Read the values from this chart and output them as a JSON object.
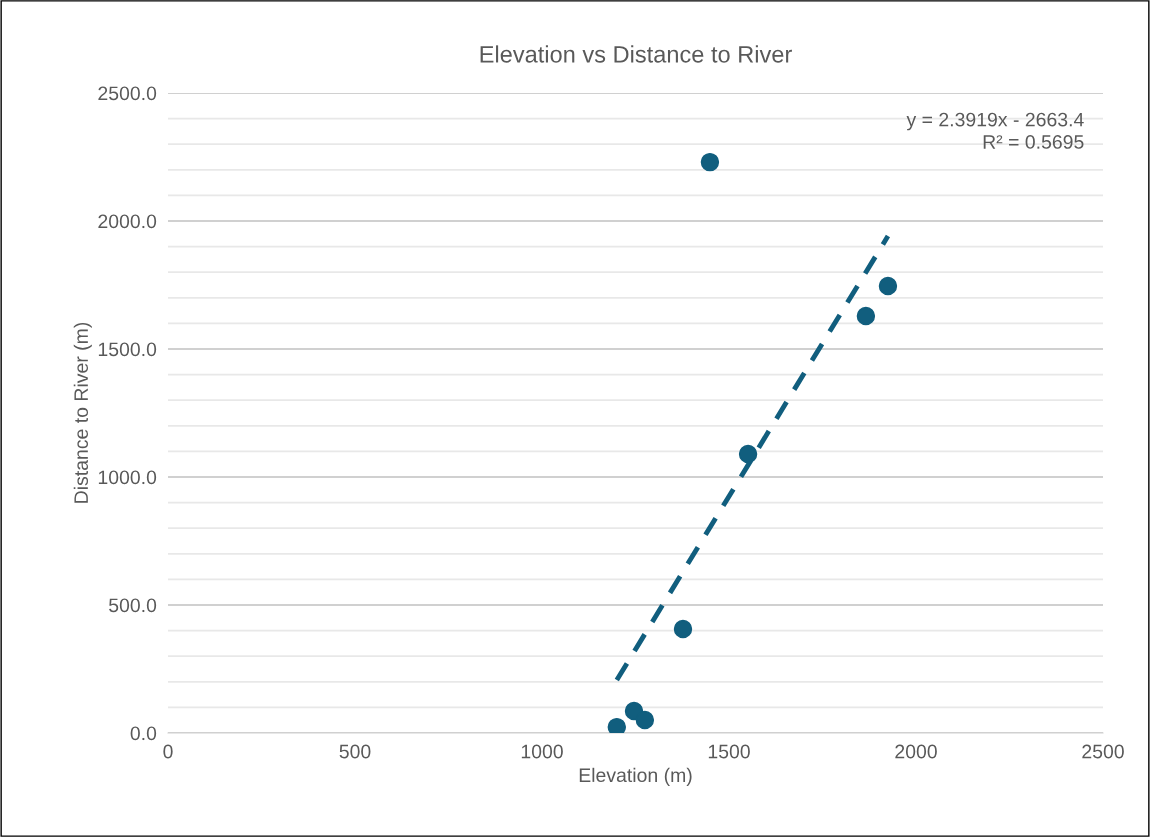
{
  "chart_data": {
    "type": "scatter",
    "title": "Elevation vs Distance to River",
    "xlabel": "Elevation (m)",
    "ylabel": "Distance to River (m)",
    "xlim": [
      0,
      2500
    ],
    "xticks": [
      0,
      500,
      1000,
      1500,
      2000,
      2500
    ],
    "ylim": [
      0,
      2500
    ],
    "yticks": [
      {
        "value": 0,
        "label": "0.0"
      },
      {
        "value": 100,
        "label": null
      },
      {
        "value": 200,
        "label": null
      },
      {
        "value": 300,
        "label": null
      },
      {
        "value": 400,
        "label": null
      },
      {
        "value": 500,
        "label": "500.0"
      },
      {
        "value": 600,
        "label": null
      },
      {
        "value": 700,
        "label": null
      },
      {
        "value": 800,
        "label": null
      },
      {
        "value": 900,
        "label": null
      },
      {
        "value": 1000,
        "label": "1000.0"
      },
      {
        "value": 1100,
        "label": null
      },
      {
        "value": 1200,
        "label": null
      },
      {
        "value": 1300,
        "label": null
      },
      {
        "value": 1400,
        "label": null
      },
      {
        "value": 1500,
        "label": "1500.0"
      },
      {
        "value": 1600,
        "label": null
      },
      {
        "value": 1700,
        "label": null
      },
      {
        "value": 1800,
        "label": null
      },
      {
        "value": 1900,
        "label": null
      },
      {
        "value": 2000,
        "label": "2000.0"
      },
      {
        "value": 2100,
        "label": null
      },
      {
        "value": 2200,
        "label": null
      },
      {
        "value": 2300,
        "label": null
      },
      {
        "value": 2400,
        "label": null
      },
      {
        "value": 2500,
        "label": "2500.0"
      }
    ],
    "grid": "y",
    "legend": false,
    "marker": "circle",
    "series": [
      {
        "color": "#115e7e",
        "x": [
          1200,
          1246,
          1275,
          1377,
          1449,
          1551,
          1866,
          1925
        ],
        "values": [
          23,
          86,
          51,
          406,
          2230,
          1090,
          1629,
          1746
        ]
      },
      {
        "type": "line",
        "color": "#115e7e",
        "line_style": "dashed",
        "marker": "none",
        "x": [
          1200,
          1925
        ],
        "values": [
          207,
          1941
        ]
      }
    ],
    "annotations": [
      "y = 2.3919x - 2663.4",
      "R² = 0.5695"
    ]
  }
}
